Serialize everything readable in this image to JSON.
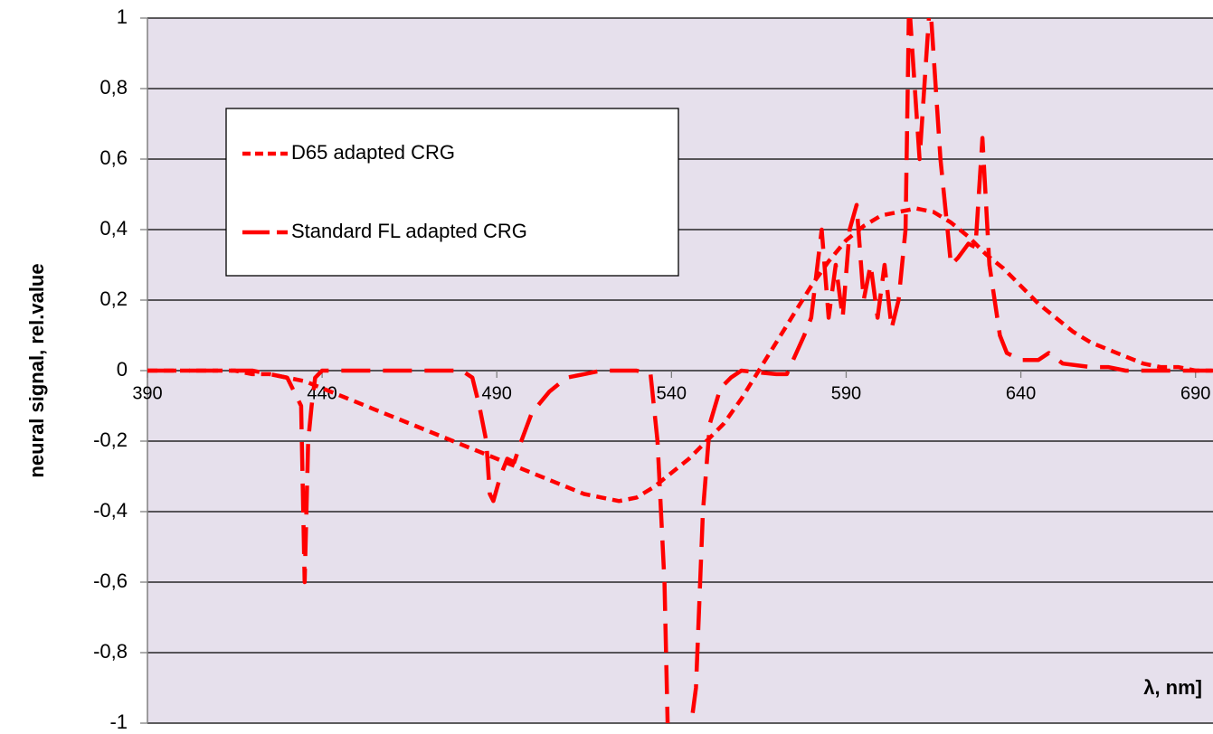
{
  "chart_data": {
    "type": "line",
    "ylabel": "neural signal, rel.value",
    "xlabel": "λ, nm]",
    "xlim": [
      390,
      695
    ],
    "xticks": [
      390,
      440,
      490,
      540,
      590,
      640,
      690
    ],
    "ylim": [
      -1,
      1
    ],
    "yticks": [
      -1,
      {
        "value": -0.8,
        "label": "-0,8"
      },
      {
        "value": -0.6,
        "label": "-0,6"
      },
      {
        "value": -0.4,
        "label": "-0,4"
      },
      {
        "value": -0.2,
        "label": "-0,2"
      },
      0,
      {
        "value": 0.2,
        "label": "0,2"
      },
      {
        "value": 0.4,
        "label": "0,4"
      },
      {
        "value": 0.6,
        "label": "0,6"
      },
      {
        "value": 0.8,
        "label": "0,8"
      },
      1
    ],
    "grid": true,
    "legend": "upper left",
    "background": "#e6e0ec",
    "series": [
      {
        "name": "D65 adapted CRG",
        "color": "#ff0000",
        "dash": "short",
        "x": [
          390,
          395,
          400,
          405,
          410,
          415,
          420,
          425,
          430,
          435,
          440,
          445,
          450,
          455,
          460,
          465,
          470,
          475,
          480,
          485,
          490,
          495,
          500,
          505,
          510,
          515,
          520,
          525,
          530,
          535,
          540,
          545,
          550,
          555,
          560,
          565,
          570,
          575,
          580,
          585,
          590,
          595,
          600,
          605,
          610,
          615,
          620,
          625,
          630,
          635,
          640,
          645,
          650,
          655,
          660,
          665,
          670,
          675,
          680,
          685,
          690,
          695
        ],
        "values": [
          0,
          0,
          0,
          0,
          0,
          0,
          -0.01,
          -0.01,
          -0.02,
          -0.03,
          -0.05,
          -0.07,
          -0.09,
          -0.11,
          -0.13,
          -0.15,
          -0.17,
          -0.19,
          -0.21,
          -0.23,
          -0.25,
          -0.27,
          -0.29,
          -0.31,
          -0.33,
          -0.35,
          -0.36,
          -0.37,
          -0.36,
          -0.33,
          -0.29,
          -0.25,
          -0.2,
          -0.15,
          -0.08,
          0,
          0.08,
          0.16,
          0.24,
          0.31,
          0.37,
          0.41,
          0.44,
          0.45,
          0.46,
          0.45,
          0.42,
          0.38,
          0.33,
          0.29,
          0.24,
          0.19,
          0.15,
          0.11,
          0.08,
          0.06,
          0.04,
          0.02,
          0.01,
          0.01,
          0,
          0
        ]
      },
      {
        "name": "Standard FL adapted CRG",
        "color": "#ff0000",
        "dash": "long",
        "x": [
          390,
          400,
          410,
          420,
          425,
          430,
          434,
          435,
          436,
          437,
          438,
          440,
          450,
          470,
          480,
          483,
          485,
          487,
          488,
          489,
          491,
          493,
          495,
          497,
          500,
          505,
          510,
          515,
          520,
          530,
          534,
          536,
          538,
          539,
          545,
          547,
          549,
          551,
          554,
          557,
          560,
          570,
          573,
          578,
          580,
          583,
          585,
          587,
          589,
          591,
          593,
          595,
          597,
          599,
          601,
          603,
          605,
          607,
          608,
          609,
          611,
          613,
          614,
          615,
          617,
          619,
          620,
          622,
          625,
          627,
          629,
          631,
          634,
          636,
          640,
          645,
          648,
          652,
          660,
          665,
          670,
          680,
          695
        ],
        "values": [
          0,
          0,
          0,
          0,
          -0.01,
          -0.02,
          -0.1,
          -0.6,
          -0.2,
          -0.1,
          -0.02,
          0,
          0,
          0,
          0,
          -0.02,
          -0.1,
          -0.2,
          -0.35,
          -0.37,
          -0.3,
          -0.25,
          -0.26,
          -0.2,
          -0.12,
          -0.06,
          -0.02,
          -0.01,
          0,
          0,
          -0.01,
          -0.2,
          -0.6,
          -1.05,
          -1.05,
          -0.9,
          -0.4,
          -0.15,
          -0.05,
          -0.02,
          0,
          -0.01,
          -0.01,
          0.1,
          0.15,
          0.4,
          0.15,
          0.3,
          0.15,
          0.4,
          0.47,
          0.2,
          0.3,
          0.15,
          0.3,
          0.12,
          0.2,
          0.4,
          1.05,
          0.9,
          0.6,
          0.9,
          1.05,
          0.9,
          0.6,
          0.4,
          0.3,
          0.32,
          0.36,
          0.35,
          0.66,
          0.3,
          0.1,
          0.05,
          0.03,
          0.03,
          0.05,
          0.02,
          0.01,
          0.01,
          0,
          0,
          0
        ]
      }
    ]
  }
}
